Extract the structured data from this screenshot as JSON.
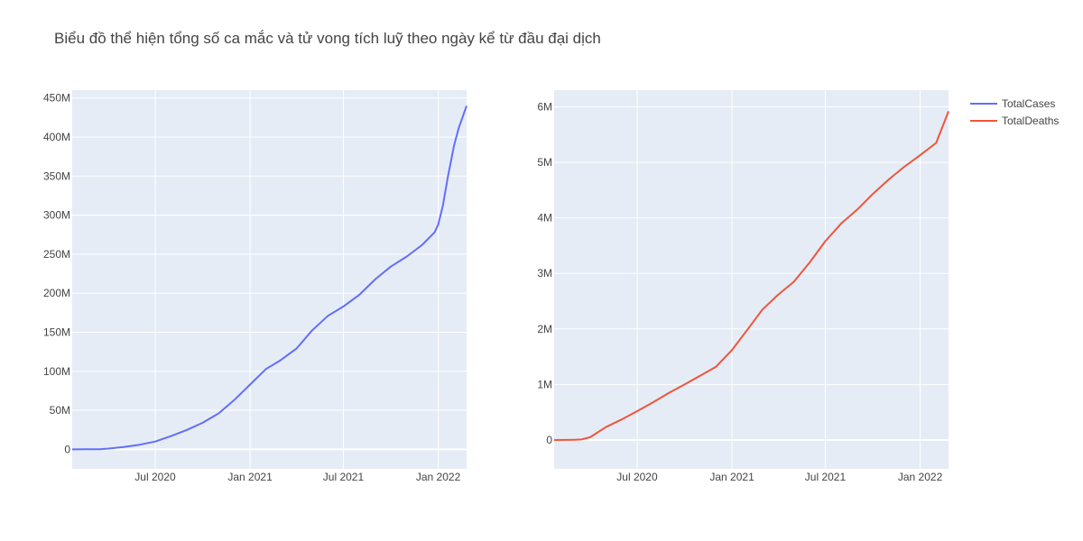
{
  "title": "Biểu đồ thể hiện tổng số ca mắc và tử vong tích luỹ theo ngày kể từ đầu đại dịch",
  "colors": {
    "plot_bg": "#e5ecf6",
    "grid": "#ffffff",
    "cases": "#636efa",
    "deaths": "#ef553b",
    "text": "#444444"
  },
  "legend": {
    "placement": "top-right",
    "items": [
      {
        "name": "TotalCases",
        "color": "#636efa"
      },
      {
        "name": "TotalDeaths",
        "color": "#ef553b"
      }
    ]
  },
  "chart_data": [
    {
      "type": "line",
      "series": [
        {
          "name": "TotalCases",
          "color": "#636efa"
        }
      ],
      "xlim": [
        "2020-01-22",
        "2022-02-25"
      ],
      "ylim": [
        -25000000,
        460000000
      ],
      "xticks": [
        {
          "date": "2020-07-01",
          "label": "Jul 2020"
        },
        {
          "date": "2021-01-01",
          "label": "Jan 2021"
        },
        {
          "date": "2021-07-01",
          "label": "Jul 2021"
        },
        {
          "date": "2022-01-01",
          "label": "Jan 2022"
        }
      ],
      "yticks": [
        {
          "value": 0,
          "label": "0"
        },
        {
          "value": 50000000,
          "label": "50M"
        },
        {
          "value": 100000000,
          "label": "100M"
        },
        {
          "value": 150000000,
          "label": "150M"
        },
        {
          "value": 200000000,
          "label": "200M"
        },
        {
          "value": 250000000,
          "label": "250M"
        },
        {
          "value": 300000000,
          "label": "300M"
        },
        {
          "value": 350000000,
          "label": "350M"
        },
        {
          "value": 400000000,
          "label": "400M"
        },
        {
          "value": 450000000,
          "label": "450M"
        }
      ],
      "points": [
        [
          "2020-01-22",
          0
        ],
        [
          "2020-02-15",
          100000
        ],
        [
          "2020-03-01",
          100000
        ],
        [
          "2020-03-15",
          200000
        ],
        [
          "2020-04-01",
          1000000
        ],
        [
          "2020-05-01",
          3000000
        ],
        [
          "2020-06-01",
          6000000
        ],
        [
          "2020-07-01",
          10000000
        ],
        [
          "2020-08-01",
          17000000
        ],
        [
          "2020-09-01",
          25000000
        ],
        [
          "2020-10-01",
          34000000
        ],
        [
          "2020-11-01",
          46000000
        ],
        [
          "2020-12-01",
          63000000
        ],
        [
          "2021-01-01",
          83000000
        ],
        [
          "2021-02-01",
          103000000
        ],
        [
          "2021-03-01",
          114000000
        ],
        [
          "2021-04-01",
          129000000
        ],
        [
          "2021-05-01",
          152000000
        ],
        [
          "2021-06-01",
          171000000
        ],
        [
          "2021-07-01",
          183000000
        ],
        [
          "2021-08-01",
          198000000
        ],
        [
          "2021-09-01",
          218000000
        ],
        [
          "2021-10-01",
          234000000
        ],
        [
          "2021-11-01",
          247000000
        ],
        [
          "2021-12-01",
          262000000
        ],
        [
          "2021-12-25",
          278000000
        ],
        [
          "2022-01-01",
          288000000
        ],
        [
          "2022-01-10",
          312000000
        ],
        [
          "2022-01-20",
          350000000
        ],
        [
          "2022-02-01",
          390000000
        ],
        [
          "2022-02-10",
          412000000
        ],
        [
          "2022-02-25",
          440000000
        ]
      ]
    },
    {
      "type": "line",
      "series": [
        {
          "name": "TotalDeaths",
          "color": "#ef553b"
        }
      ],
      "xlim": [
        "2020-01-22",
        "2022-02-25"
      ],
      "ylim": [
        -520000,
        6300000
      ],
      "xticks": [
        {
          "date": "2020-07-01",
          "label": "Jul 2020"
        },
        {
          "date": "2021-01-01",
          "label": "Jan 2021"
        },
        {
          "date": "2021-07-01",
          "label": "Jul 2021"
        },
        {
          "date": "2022-01-01",
          "label": "Jan 2022"
        }
      ],
      "yticks": [
        {
          "value": 0,
          "label": "0"
        },
        {
          "value": 1000000,
          "label": "1M"
        },
        {
          "value": 2000000,
          "label": "2M"
        },
        {
          "value": 3000000,
          "label": "3M"
        },
        {
          "value": 4000000,
          "label": "4M"
        },
        {
          "value": 5000000,
          "label": "5M"
        },
        {
          "value": 6000000,
          "label": "6M"
        }
      ],
      "points": [
        [
          "2020-01-22",
          0
        ],
        [
          "2020-02-15",
          2000
        ],
        [
          "2020-03-01",
          3000
        ],
        [
          "2020-03-15",
          10000
        ],
        [
          "2020-04-01",
          50000
        ],
        [
          "2020-05-01",
          230000
        ],
        [
          "2020-06-01",
          370000
        ],
        [
          "2020-07-01",
          520000
        ],
        [
          "2020-08-01",
          680000
        ],
        [
          "2020-09-01",
          850000
        ],
        [
          "2020-10-01",
          1000000
        ],
        [
          "2020-11-01",
          1160000
        ],
        [
          "2020-12-01",
          1320000
        ],
        [
          "2021-01-01",
          1620000
        ],
        [
          "2021-02-01",
          2000000
        ],
        [
          "2021-03-01",
          2350000
        ],
        [
          "2021-04-01",
          2620000
        ],
        [
          "2021-05-01",
          2850000
        ],
        [
          "2021-06-01",
          3200000
        ],
        [
          "2021-07-01",
          3580000
        ],
        [
          "2021-08-01",
          3900000
        ],
        [
          "2021-09-01",
          4150000
        ],
        [
          "2021-10-01",
          4430000
        ],
        [
          "2021-11-01",
          4690000
        ],
        [
          "2021-12-01",
          4920000
        ],
        [
          "2022-01-01",
          5130000
        ],
        [
          "2022-02-01",
          5350000
        ],
        [
          "2022-02-25",
          5920000
        ]
      ]
    }
  ]
}
